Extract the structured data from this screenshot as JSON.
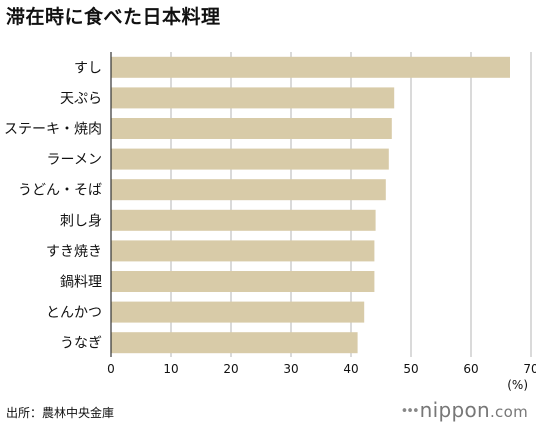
{
  "header": {
    "title": "滞在時に食べた日本料理"
  },
  "chart_data": {
    "type": "bar",
    "orientation": "horizontal",
    "categories": [
      "すし",
      "天ぷら",
      "ステーキ・焼肉",
      "ラーメン",
      "うどん・そば",
      "刺し身",
      "すき焼き",
      "鍋料理",
      "とんかつ",
      "うなぎ"
    ],
    "values": [
      66.5,
      47.2,
      46.8,
      46.3,
      45.8,
      44.1,
      43.9,
      43.9,
      42.2,
      41.1
    ],
    "xlim": [
      0,
      70
    ],
    "xticks": [
      "0",
      "10",
      "20",
      "30",
      "40",
      "50",
      "60",
      "70"
    ],
    "xunit": "(%)",
    "grid": true,
    "bar_color": "#d8cba8"
  },
  "footer": {
    "source": "出所：農林中央金庫",
    "logo": {
      "dots": "•••",
      "name": "nippon",
      "suffix": ".com"
    }
  }
}
